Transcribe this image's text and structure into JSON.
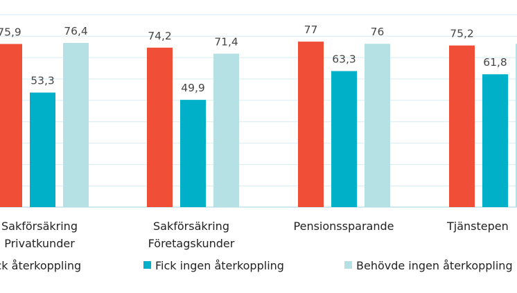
{
  "chart_data": {
    "type": "bar",
    "title": "",
    "xlabel": "",
    "ylabel": "",
    "ylim": [
      0,
      90
    ],
    "grid": true,
    "legend_position": "bottom",
    "categories": [
      [
        "Sakförsäkring",
        "Privatkunder"
      ],
      [
        "Sakförsäkring",
        "Företagskunder"
      ],
      [
        "Pensionssparande"
      ],
      [
        "Tjänstepen"
      ]
    ],
    "series": [
      {
        "name": "Fick återkoppling",
        "color": "#f04e37",
        "values": [
          75.9,
          74.2,
          77,
          75.2
        ],
        "labels": [
          "75,9",
          "74,2",
          "77",
          "75,2"
        ]
      },
      {
        "name": "Fick ingen återkoppling",
        "color": "#00afc8",
        "values": [
          53.3,
          49.9,
          63.3,
          61.8
        ],
        "labels": [
          "53,3",
          "49,9",
          "63,3",
          "61,8"
        ]
      },
      {
        "name": "Behövde ingen återkoppling",
        "color": "#b5e0e4",
        "values": [
          76.4,
          71.4,
          76,
          76
        ],
        "labels": [
          "76,4",
          "71,4",
          "76",
          ""
        ]
      }
    ]
  }
}
